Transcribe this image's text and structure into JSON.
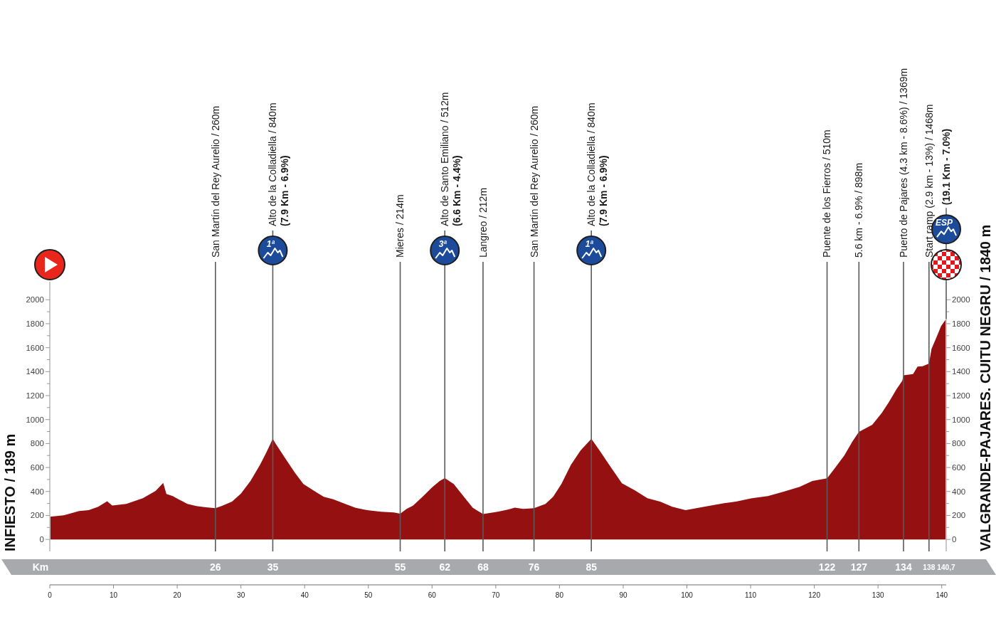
{
  "chart_data": {
    "type": "area",
    "color": "#951111",
    "x": [
      0,
      2.2,
      4.6,
      6.1,
      7.6,
      9,
      9.8,
      12,
      14.6,
      16.6,
      17.8,
      18.3,
      19.3,
      20.3,
      21.6,
      23,
      24.5,
      26,
      27.1,
      28.6,
      30,
      31.5,
      33,
      34,
      35,
      35.5,
      37,
      38.5,
      39.8,
      41.5,
      43,
      44.5,
      46,
      48,
      50,
      52,
      54,
      55,
      56,
      57,
      58.5,
      60,
      61.2,
      62,
      63.4,
      65,
      66.4,
      68,
      70.3,
      72,
      73,
      74.3,
      76,
      77.8,
      79,
      80.3,
      81.8,
      83.3,
      85,
      86.3,
      87.8,
      89.8,
      91.8,
      93.8,
      95.8,
      97.7,
      99.8,
      102.7,
      105.2,
      107.7,
      110.2,
      112.7,
      115.2,
      117.7,
      119.7,
      122,
      123.2,
      124.7,
      126,
      127,
      129.1,
      130.6,
      131.7,
      132.9,
      133.8,
      134,
      135.5,
      136.2,
      137,
      138,
      138.4,
      139.2,
      139.9,
      140.7
    ],
    "values": [
      189,
      202,
      237,
      245,
      273,
      318,
      283,
      297,
      344,
      404,
      472,
      380,
      362,
      332,
      297,
      279,
      268,
      260,
      282,
      315,
      382,
      488,
      623,
      727,
      840,
      795,
      673,
      555,
      463,
      404,
      356,
      335,
      303,
      263,
      243,
      231,
      225,
      214,
      255,
      282,
      356,
      435,
      488,
      512,
      463,
      356,
      263,
      212,
      231,
      250,
      265,
      255,
      260,
      297,
      356,
      463,
      623,
      742,
      840,
      742,
      623,
      469,
      410,
      344,
      316,
      273,
      245,
      273,
      297,
      316,
      344,
      362,
      398,
      439,
      488,
      510,
      593,
      700,
      819,
      898,
      957,
      1056,
      1145,
      1254,
      1323,
      1369,
      1380,
      1442,
      1445,
      1468,
      1590,
      1690,
      1780,
      1840
    ],
    "xlim": [
      0,
      140.7
    ],
    "xticks": [
      0,
      10,
      20,
      30,
      40,
      50,
      60,
      70,
      80,
      90,
      100,
      110,
      120,
      130,
      140
    ],
    "ylim": [
      -100,
      2150
    ],
    "yticks": [
      0,
      {
        "value": 100,
        "label": null
      },
      200,
      {
        "value": 300,
        "label": null
      },
      400,
      {
        "value": 500,
        "label": null
      },
      600,
      {
        "value": 700,
        "label": null
      },
      800,
      {
        "value": 900,
        "label": null
      },
      1000,
      {
        "value": 1100,
        "label": null
      },
      1200,
      {
        "value": 1300,
        "label": null
      },
      1400,
      {
        "value": 1500,
        "label": null
      },
      1600,
      {
        "value": 1700,
        "label": null
      },
      1800,
      {
        "value": 1900,
        "label": null
      },
      2000
    ],
    "y2lim": [
      -100,
      2150
    ],
    "y2ticks": [
      0,
      {
        "value": 100,
        "label": null
      },
      200,
      {
        "value": 300,
        "label": null
      },
      400,
      {
        "value": 500,
        "label": null
      },
      600,
      {
        "value": 700,
        "label": null
      },
      800,
      {
        "value": 900,
        "label": null
      },
      1000,
      {
        "value": 1100,
        "label": null
      },
      1200,
      {
        "value": 1300,
        "label": null
      },
      1400,
      {
        "value": 1500,
        "label": null
      },
      1600,
      {
        "value": 1700,
        "label": null
      },
      1800,
      {
        "value": 1900,
        "label": null
      },
      2000
    ],
    "ylabel": "INFIESTO / 189 m",
    "y2label": "VALGRANDE-PAJARES. CUITU NEGRU / 1840 m",
    "x2label": "Km",
    "x2lim": [
      0,
      140.7
    ],
    "x2ticks": [
      26,
      35,
      55,
      62,
      68,
      76,
      85,
      122,
      127,
      134,
      138,
      {
        "value": 140.7,
        "label": "140,7"
      }
    ],
    "ref_lines": [
      {
        "axis": "x",
        "value": 26,
        "label": "San Martín del Rey Aurelio / 260m"
      },
      {
        "axis": "x",
        "value": 35,
        "label": "Alto de la Colladiella / 840m\n(7.9 Km - 6.9%)"
      },
      {
        "axis": "x",
        "value": 55,
        "label": "Mieres / 214m"
      },
      {
        "axis": "x",
        "value": 62,
        "label": "Alto de Santo Emiliano / 512m\n(6.6 Km - 4.4%)"
      },
      {
        "axis": "x",
        "value": 68,
        "label": "Langreo / 212m"
      },
      {
        "axis": "x",
        "value": 76,
        "label": "San Martín del Rey Aurelio / 260m"
      },
      {
        "axis": "x",
        "value": 85,
        "label": "Alto de la Colladiella / 840m\n(7.9 Km - 6.9%)"
      },
      {
        "axis": "x",
        "value": 122,
        "label": "Puente de los Fierros / 510m"
      },
      {
        "axis": "x",
        "value": 127,
        "label": "5.6 km - 6.9% / 898m"
      },
      {
        "axis": "x",
        "value": 134,
        "label": "Puerto de Pajares (4.3 km - 8.6%) / 1369m"
      },
      {
        "axis": "x",
        "value": 138,
        "label": "Start ramp (2.9 km - 13%) / 1468m"
      }
    ],
    "annotations": [
      "1ª",
      "3ª",
      "1ª",
      "ESP",
      {
        "text": "(19.1 Km - 7.0%)",
        "x": 140.7,
        "y": 1840
      }
    ]
  }
}
